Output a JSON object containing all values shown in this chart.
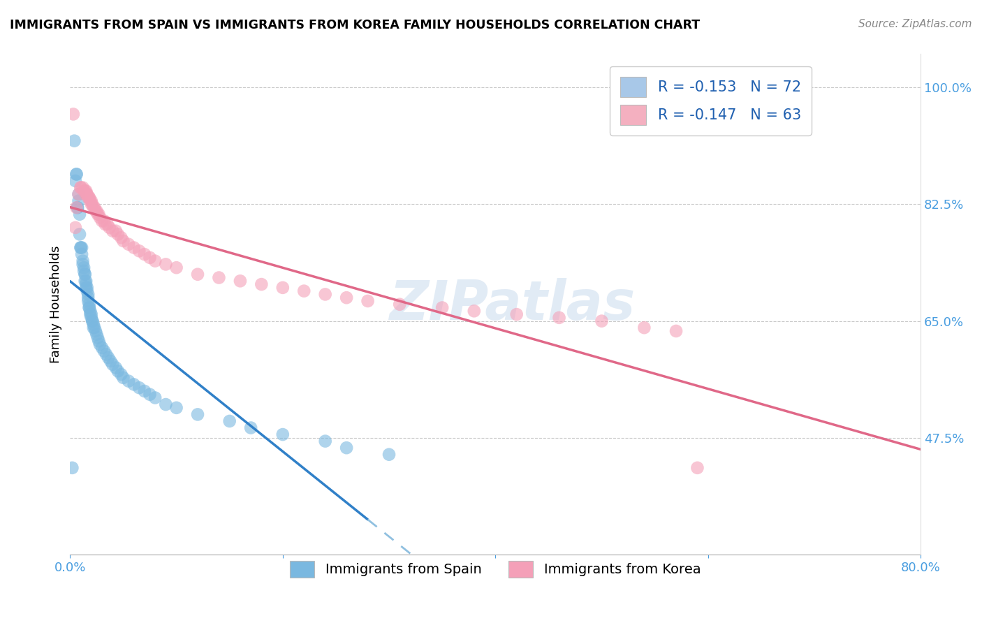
{
  "title": "IMMIGRANTS FROM SPAIN VS IMMIGRANTS FROM KOREA FAMILY HOUSEHOLDS CORRELATION CHART",
  "source": "Source: ZipAtlas.com",
  "ylabel": "Family Households",
  "xlim": [
    0.0,
    0.8
  ],
  "ylim": [
    0.3,
    1.05
  ],
  "xticks": [
    0.0,
    0.2,
    0.4,
    0.6,
    0.8
  ],
  "xtick_labels": [
    "0.0%",
    "",
    "",
    "",
    "80.0%"
  ],
  "yticks": [
    0.475,
    0.65,
    0.825,
    1.0
  ],
  "ytick_labels": [
    "47.5%",
    "65.0%",
    "82.5%",
    "100.0%"
  ],
  "watermark": "ZIPatlas",
  "legend_entries": [
    {
      "label_r": "R = -0.153",
      "label_n": "N = 72",
      "color": "#a8c8e8"
    },
    {
      "label_r": "R = -0.147",
      "label_n": "N = 63",
      "color": "#f4b0c0"
    }
  ],
  "legend_bottom": [
    "Immigrants from Spain",
    "Immigrants from Korea"
  ],
  "spain_color": "#7ab8e0",
  "korea_color": "#f4a0b8",
  "spain_scatter_x": [
    0.002,
    0.004,
    0.005,
    0.006,
    0.006,
    0.007,
    0.007,
    0.008,
    0.008,
    0.009,
    0.009,
    0.01,
    0.01,
    0.011,
    0.011,
    0.012,
    0.012,
    0.013,
    0.013,
    0.014,
    0.014,
    0.014,
    0.015,
    0.015,
    0.015,
    0.016,
    0.016,
    0.017,
    0.017,
    0.017,
    0.018,
    0.018,
    0.018,
    0.019,
    0.019,
    0.02,
    0.02,
    0.021,
    0.021,
    0.022,
    0.022,
    0.023,
    0.024,
    0.025,
    0.026,
    0.027,
    0.028,
    0.03,
    0.032,
    0.034,
    0.036,
    0.038,
    0.04,
    0.043,
    0.045,
    0.048,
    0.05,
    0.055,
    0.06,
    0.065,
    0.07,
    0.075,
    0.08,
    0.09,
    0.1,
    0.12,
    0.15,
    0.17,
    0.2,
    0.24,
    0.26,
    0.3
  ],
  "spain_scatter_y": [
    0.43,
    0.92,
    0.86,
    0.87,
    0.87,
    0.82,
    0.82,
    0.84,
    0.83,
    0.81,
    0.78,
    0.76,
    0.76,
    0.76,
    0.75,
    0.74,
    0.735,
    0.73,
    0.725,
    0.72,
    0.72,
    0.71,
    0.71,
    0.705,
    0.7,
    0.7,
    0.695,
    0.69,
    0.685,
    0.68,
    0.675,
    0.67,
    0.67,
    0.665,
    0.66,
    0.66,
    0.655,
    0.65,
    0.65,
    0.645,
    0.64,
    0.64,
    0.635,
    0.63,
    0.625,
    0.62,
    0.615,
    0.61,
    0.605,
    0.6,
    0.595,
    0.59,
    0.585,
    0.58,
    0.575,
    0.57,
    0.565,
    0.56,
    0.555,
    0.55,
    0.545,
    0.54,
    0.535,
    0.525,
    0.52,
    0.51,
    0.5,
    0.49,
    0.48,
    0.47,
    0.46,
    0.45
  ],
  "korea_scatter_x": [
    0.003,
    0.005,
    0.006,
    0.008,
    0.01,
    0.01,
    0.012,
    0.013,
    0.014,
    0.015,
    0.015,
    0.016,
    0.016,
    0.017,
    0.018,
    0.018,
    0.019,
    0.02,
    0.02,
    0.021,
    0.022,
    0.023,
    0.024,
    0.025,
    0.026,
    0.027,
    0.028,
    0.03,
    0.032,
    0.033,
    0.035,
    0.037,
    0.04,
    0.043,
    0.045,
    0.048,
    0.05,
    0.055,
    0.06,
    0.065,
    0.07,
    0.075,
    0.08,
    0.09,
    0.1,
    0.12,
    0.14,
    0.16,
    0.18,
    0.2,
    0.22,
    0.24,
    0.26,
    0.28,
    0.31,
    0.35,
    0.38,
    0.42,
    0.46,
    0.5,
    0.54,
    0.57,
    0.59
  ],
  "korea_scatter_y": [
    0.96,
    0.79,
    0.82,
    0.84,
    0.85,
    0.85,
    0.85,
    0.845,
    0.845,
    0.845,
    0.84,
    0.84,
    0.84,
    0.835,
    0.835,
    0.835,
    0.83,
    0.83,
    0.825,
    0.825,
    0.82,
    0.82,
    0.815,
    0.815,
    0.81,
    0.81,
    0.805,
    0.8,
    0.8,
    0.795,
    0.795,
    0.79,
    0.785,
    0.785,
    0.78,
    0.775,
    0.77,
    0.765,
    0.76,
    0.755,
    0.75,
    0.745,
    0.74,
    0.735,
    0.73,
    0.72,
    0.715,
    0.71,
    0.705,
    0.7,
    0.695,
    0.69,
    0.685,
    0.68,
    0.675,
    0.67,
    0.665,
    0.66,
    0.655,
    0.65,
    0.64,
    0.635,
    0.43
  ],
  "spain_line_x": [
    0.0,
    0.3
  ],
  "spain_line_solid_end": 0.28,
  "spain_line_dash_start": 0.28,
  "korea_line_x": [
    0.0,
    0.8
  ],
  "bg_color": "#ffffff"
}
